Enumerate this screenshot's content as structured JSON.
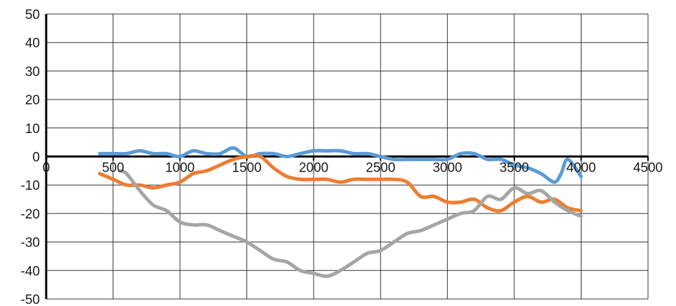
{
  "chart_data": {
    "type": "line",
    "title": "",
    "xlabel": "",
    "ylabel": "",
    "xlim": [
      0,
      4500
    ],
    "ylim": [
      -50,
      50
    ],
    "grid": true,
    "legend": "none",
    "x_ticks": [
      0,
      500,
      1000,
      1500,
      2000,
      2500,
      3000,
      3500,
      4000,
      4500
    ],
    "y_ticks": [
      50,
      40,
      30,
      20,
      10,
      0,
      -10,
      -20,
      -30,
      -40,
      -50
    ],
    "series": [
      {
        "color": "#5b9bd5",
        "points": [
          [
            400,
            1
          ],
          [
            500,
            1
          ],
          [
            600,
            1
          ],
          [
            700,
            2
          ],
          [
            800,
            1
          ],
          [
            900,
            1
          ],
          [
            1000,
            0
          ],
          [
            1100,
            2
          ],
          [
            1200,
            1
          ],
          [
            1300,
            1
          ],
          [
            1400,
            3
          ],
          [
            1500,
            0
          ],
          [
            1600,
            1
          ],
          [
            1700,
            1
          ],
          [
            1800,
            0
          ],
          [
            1900,
            1
          ],
          [
            2000,
            2
          ],
          [
            2100,
            2
          ],
          [
            2200,
            2
          ],
          [
            2300,
            1
          ],
          [
            2400,
            1
          ],
          [
            2500,
            0
          ],
          [
            2600,
            -1
          ],
          [
            2700,
            -1
          ],
          [
            2800,
            -1
          ],
          [
            2900,
            -1
          ],
          [
            3000,
            -1
          ],
          [
            3100,
            1
          ],
          [
            3200,
            1
          ],
          [
            3300,
            -1
          ],
          [
            3400,
            -1
          ],
          [
            3500,
            -3
          ],
          [
            3600,
            -4
          ],
          [
            3700,
            -6
          ],
          [
            3800,
            -9
          ],
          [
            3850,
            -6
          ],
          [
            3900,
            -1
          ],
          [
            4000,
            -7
          ]
        ]
      },
      {
        "color": "#ed7d31",
        "points": [
          [
            400,
            -6
          ],
          [
            500,
            -8
          ],
          [
            600,
            -10
          ],
          [
            700,
            -10
          ],
          [
            800,
            -11
          ],
          [
            900,
            -10
          ],
          [
            1000,
            -9
          ],
          [
            1100,
            -6
          ],
          [
            1200,
            -5
          ],
          [
            1300,
            -3
          ],
          [
            1400,
            -1
          ],
          [
            1500,
            0
          ],
          [
            1600,
            0
          ],
          [
            1700,
            -4
          ],
          [
            1800,
            -7
          ],
          [
            1900,
            -8
          ],
          [
            2000,
            -8
          ],
          [
            2100,
            -8
          ],
          [
            2200,
            -9
          ],
          [
            2300,
            -8
          ],
          [
            2400,
            -8
          ],
          [
            2500,
            -8
          ],
          [
            2600,
            -8
          ],
          [
            2700,
            -9
          ],
          [
            2800,
            -14
          ],
          [
            2900,
            -14
          ],
          [
            3000,
            -16
          ],
          [
            3100,
            -16
          ],
          [
            3200,
            -15
          ],
          [
            3300,
            -18
          ],
          [
            3400,
            -19
          ],
          [
            3500,
            -16
          ],
          [
            3600,
            -14
          ],
          [
            3700,
            -16
          ],
          [
            3800,
            -15
          ],
          [
            3900,
            -18
          ],
          [
            4000,
            -19
          ]
        ]
      },
      {
        "color": "#a5a5a5",
        "points": [
          [
            550,
            -5
          ],
          [
            600,
            -6
          ],
          [
            700,
            -12
          ],
          [
            800,
            -17
          ],
          [
            900,
            -19
          ],
          [
            1000,
            -23
          ],
          [
            1100,
            -24
          ],
          [
            1200,
            -24
          ],
          [
            1300,
            -26
          ],
          [
            1400,
            -28
          ],
          [
            1500,
            -30
          ],
          [
            1600,
            -33
          ],
          [
            1700,
            -36
          ],
          [
            1800,
            -37
          ],
          [
            1900,
            -40
          ],
          [
            2000,
            -41
          ],
          [
            2100,
            -42
          ],
          [
            2200,
            -40
          ],
          [
            2300,
            -37
          ],
          [
            2400,
            -34
          ],
          [
            2500,
            -33
          ],
          [
            2600,
            -30
          ],
          [
            2700,
            -27
          ],
          [
            2800,
            -26
          ],
          [
            2900,
            -24
          ],
          [
            3000,
            -22
          ],
          [
            3100,
            -20
          ],
          [
            3200,
            -19
          ],
          [
            3300,
            -14
          ],
          [
            3400,
            -15
          ],
          [
            3500,
            -11
          ],
          [
            3600,
            -13
          ],
          [
            3700,
            -12
          ],
          [
            3800,
            -16
          ],
          [
            3900,
            -19
          ],
          [
            4000,
            -21
          ]
        ]
      }
    ]
  }
}
